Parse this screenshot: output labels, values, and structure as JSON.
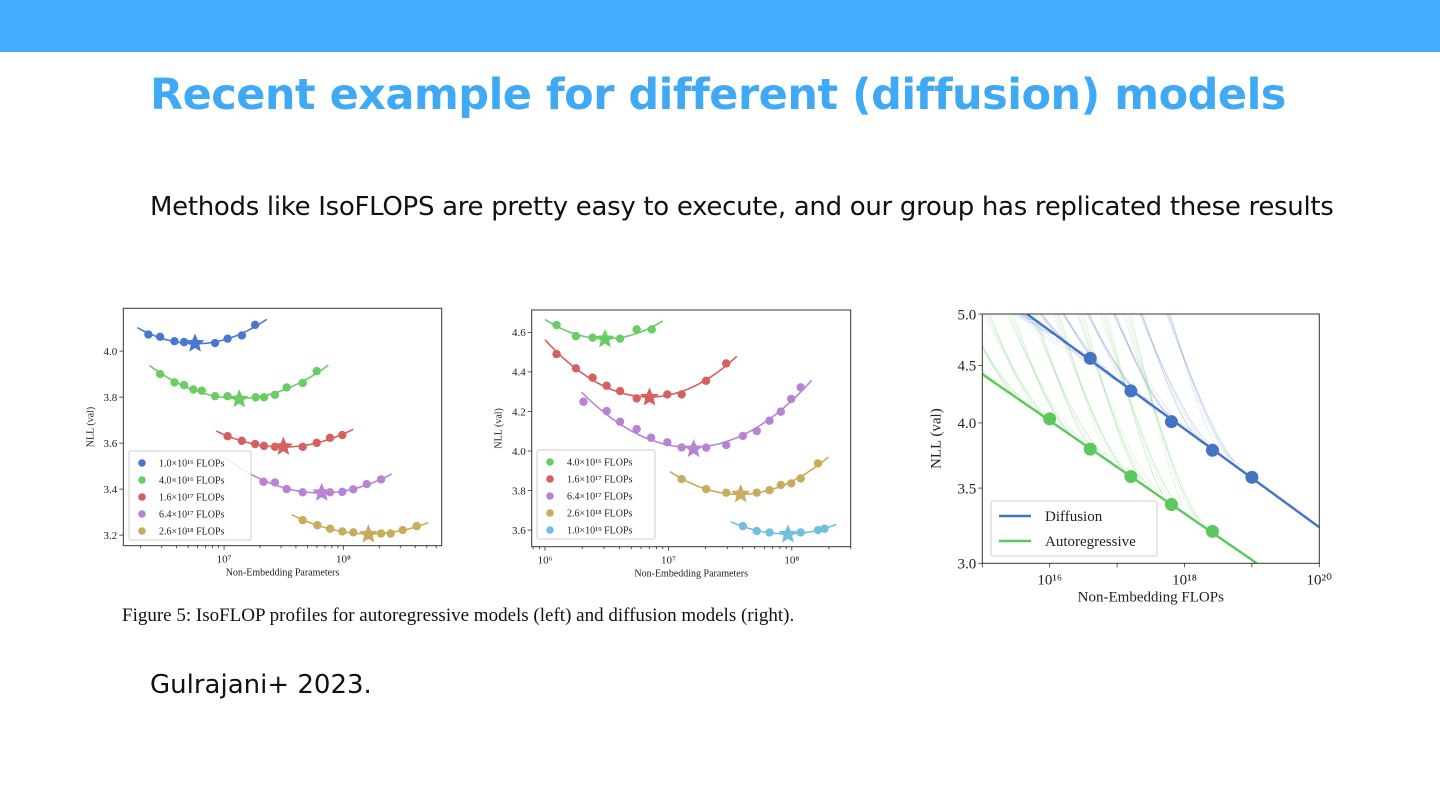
{
  "header": {
    "title": "Recent example for different (diffusion) models"
  },
  "body": {
    "text": "Methods like IsoFLOPS are pretty easy to execute, and our group has replicated these results"
  },
  "caption": "Figure 5: IsoFLOP profiles for autoregressive models (left) and diffusion models (right).",
  "citation": "Gulrajani+ 2023.",
  "colors": {
    "topbar": "#42adff",
    "title": "#3fa9f5"
  },
  "chart_data": [
    {
      "type": "scatter",
      "xlabel": "Non-Embedding Parameters",
      "ylabel": "NLL (val)",
      "xscale": "log",
      "xlim": [
        1430000.0,
        667000000.0
      ],
      "ylim": [
        3.154,
        4.186
      ],
      "xticks": [
        {
          "value": 10000000.0,
          "label": "10⁷"
        },
        {
          "value": 100000000.0,
          "label": "10⁸"
        }
      ],
      "yticks": [
        {
          "value": 3.2,
          "label": "3.2"
        },
        {
          "value": 3.4,
          "label": "3.4"
        },
        {
          "value": 3.6,
          "label": "3.6"
        },
        {
          "value": 3.8,
          "label": "3.8"
        },
        {
          "value": 4.0,
          "label": "4.0"
        }
      ],
      "legend": "bottom-left",
      "series": [
        {
          "name": "1.0×10¹⁶ FLOPs",
          "color": "#4878d0",
          "fit_range": [
            1880000.0,
            22800000.0
          ],
          "optimum": [
            5710000.0,
            4.033
          ],
          "points": [
            [
              2320000.0,
              4.072
            ],
            [
              2910000.0,
              4.062
            ],
            [
              3840000.0,
              4.043
            ],
            [
              4620000.0,
              4.039
            ],
            [
              8400000.0,
              4.035
            ],
            [
              10700000.0,
              4.054
            ],
            [
              14100000.0,
              4.068
            ],
            [
              18200000.0,
              4.114
            ]
          ]
        },
        {
          "name": "4.0×10¹⁶ FLOPs",
          "color": "#6acc64",
          "fit_range": [
            2370000.0,
            74800000.0
          ],
          "optimum": [
            13400000.0,
            3.791
          ],
          "points": [
            [
              2910000.0,
              3.9
            ],
            [
              3840000.0,
              3.864
            ],
            [
              4620000.0,
              3.852
            ],
            [
              5530000.0,
              3.833
            ],
            [
              6500000.0,
              3.828
            ],
            [
              8400000.0,
              3.804
            ],
            [
              10700000.0,
              3.804
            ],
            [
              18400000.0,
              3.799
            ],
            [
              21600000.0,
              3.799
            ],
            [
              26700000.0,
              3.81
            ],
            [
              33500000.0,
              3.842
            ],
            [
              45600000.0,
              3.861
            ],
            [
              59800000.0,
              3.913
            ]
          ]
        },
        {
          "name": "1.6×10¹⁷ FLOPs",
          "color": "#d65f5f",
          "fit_range": [
            8600000.0,
            121000000.0
          ],
          "optimum": [
            31400000.0,
            3.584
          ],
          "points": [
            [
              10700000.0,
              3.63
            ],
            [
              14100000.0,
              3.61
            ],
            [
              18200000.0,
              3.596
            ],
            [
              21600000.0,
              3.588
            ],
            [
              26700000.0,
              3.584
            ],
            [
              45600000.0,
              3.584
            ],
            [
              59800000.0,
              3.601
            ],
            [
              77300000.0,
              3.623
            ],
            [
              98000000.0,
              3.635
            ]
          ]
        },
        {
          "name": "6.4×10¹⁷ FLOPs",
          "color": "#b983d4",
          "fit_range": [
            10000000.0,
            254000000.0
          ],
          "optimum": [
            65800000.0,
            3.384
          ],
          "points": [
            [
              21400000.0,
              3.432
            ],
            [
              26700000.0,
              3.429
            ],
            [
              33500000.0,
              3.4
            ],
            [
              45600000.0,
              3.386
            ],
            [
              77300000.0,
              3.386
            ],
            [
              98000000.0,
              3.388
            ],
            [
              121000000.0,
              3.399
            ],
            [
              157000000.0,
              3.422
            ],
            [
              207000000.0,
              3.442
            ]
          ]
        },
        {
          "name": "2.6×10¹⁸ FLOPs",
          "color": "#c9ab5e",
          "fit_range": [
            36900000.0,
            515000000.0
          ],
          "optimum": [
            162000000.0,
            3.203
          ],
          "points": [
            [
              45600000.0,
              3.265
            ],
            [
              60500000.0,
              3.243
            ],
            [
              77300000.0,
              3.228
            ],
            [
              98000000.0,
              3.216
            ],
            [
              121000000.0,
              3.212
            ],
            [
              207000000.0,
              3.207
            ],
            [
              249000000.0,
              3.207
            ],
            [
              314000000.0,
              3.222
            ],
            [
              412000000.0,
              3.239
            ]
          ]
        }
      ]
    },
    {
      "type": "scatter",
      "xlabel": "Non-Embedding Parameters",
      "ylabel": "NLL (val)",
      "xscale": "log",
      "xlim": [
        780000.0,
        300000000.0
      ],
      "ylim": [
        3.516,
        4.713
      ],
      "xticks": [
        {
          "value": 1000000.0,
          "label": "10⁶"
        },
        {
          "value": 10000000.0,
          "label": "10⁷"
        },
        {
          "value": 100000000.0,
          "label": "10⁸"
        }
      ],
      "yticks": [
        {
          "value": 3.6,
          "label": "3.6"
        },
        {
          "value": 3.8,
          "label": "3.8"
        },
        {
          "value": 4.0,
          "label": "4.0"
        },
        {
          "value": 4.2,
          "label": "4.2"
        },
        {
          "value": 4.4,
          "label": "4.4"
        },
        {
          "value": 4.6,
          "label": "4.6"
        }
      ],
      "legend": "bottom-left",
      "series": [
        {
          "name": "4.0×10¹⁶ FLOPs",
          "color": "#6acc64",
          "fit_range": [
            1000000.0,
            9000000.0
          ],
          "optimum": [
            3060000.0,
            4.566
          ],
          "points": [
            [
              1240000.0,
              4.637
            ],
            [
              1780000.0,
              4.581
            ],
            [
              2430000.0,
              4.573
            ],
            [
              4060000.0,
              4.568
            ],
            [
              5530000.0,
              4.615
            ],
            [
              7330000.0,
              4.615
            ]
          ]
        },
        {
          "name": "1.6×10¹⁷ FLOPs",
          "color": "#d65f5f",
          "fit_range": [
            1000000.0,
            35800000.0
          ],
          "optimum": [
            7020000.0,
            4.271
          ],
          "points": [
            [
              1240000.0,
              4.49
            ],
            [
              1780000.0,
              4.418
            ],
            [
              2430000.0,
              4.371
            ],
            [
              3160000.0,
              4.33
            ],
            [
              4060000.0,
              4.303
            ],
            [
              5530000.0,
              4.266
            ],
            [
              9800000.0,
              4.286
            ],
            [
              12800000.0,
              4.286
            ],
            [
              20200000.0,
              4.355
            ],
            [
              29400000.0,
              4.443
            ]
          ]
        },
        {
          "name": "6.4×10¹⁷ FLOPs",
          "color": "#b983d4",
          "fit_range": [
            1980000.0,
            145000000.0
          ],
          "optimum": [
            16000000.0,
            4.01
          ],
          "points": [
            [
              2050000.0,
              4.249
            ],
            [
              3160000.0,
              4.202
            ],
            [
              4060000.0,
              4.148
            ],
            [
              5530000.0,
              4.111
            ],
            [
              7230000.0,
              4.067
            ],
            [
              9800000.0,
              4.044
            ],
            [
              12800000.0,
              4.018
            ],
            [
              20200000.0,
              4.017
            ],
            [
              29400000.0,
              4.03
            ],
            [
              40100000.0,
              4.076
            ],
            [
              52000000.0,
              4.101
            ],
            [
              65900000.0,
              4.153
            ],
            [
              81500000.0,
              4.199
            ],
            [
              98900000.0,
              4.263
            ],
            [
              118000000.0,
              4.322
            ]
          ]
        },
        {
          "name": "2.6×10¹⁸ FLOPs",
          "color": "#c9ab5e",
          "fit_range": [
            10300000.0,
            198000000.0
          ],
          "optimum": [
            38500000.0,
            3.782
          ],
          "points": [
            [
              12800000.0,
              3.858
            ],
            [
              20200000.0,
              3.807
            ],
            [
              29400000.0,
              3.789
            ],
            [
              52000000.0,
              3.789
            ],
            [
              65900000.0,
              3.802
            ],
            [
              81500000.0,
              3.828
            ],
            [
              98900000.0,
              3.836
            ],
            [
              118000000.0,
              3.861
            ],
            [
              163000000.0,
              3.937
            ]
          ]
        },
        {
          "name": "1.0×10¹⁹ FLOPs",
          "color": "#6fbfdd",
          "fit_range": [
            32000000.0,
            229000000.0
          ],
          "optimum": [
            92900000.0,
            3.578
          ],
          "points": [
            [
              40100000.0,
              3.62
            ],
            [
              52000000.0,
              3.595
            ],
            [
              65900000.0,
              3.588
            ],
            [
              118000000.0,
              3.588
            ],
            [
              163000000.0,
              3.6
            ],
            [
              184000000.0,
              3.607
            ]
          ]
        }
      ]
    },
    {
      "type": "line",
      "xlabel": "Non-Embedding FLOPs",
      "ylabel": "NLL (val)",
      "xscale": "log",
      "yscale": "log",
      "xlim": [
        1000000000000000.0,
        1e+20
      ],
      "ylim": [
        3.0,
        5.0
      ],
      "xticks": [
        {
          "value": 1e+16,
          "label": "10¹⁶"
        },
        {
          "value": 1e+18,
          "label": "10¹⁸"
        },
        {
          "value": 1e+20,
          "label": "10²⁰"
        }
      ],
      "yticks": [
        {
          "value": 3.0,
          "label": "3.0"
        },
        {
          "value": 3.5,
          "label": "3.5"
        },
        {
          "value": 4.0,
          "label": "4.0"
        },
        {
          "value": 4.5,
          "label": "4.5"
        },
        {
          "value": 5.0,
          "label": "5.0"
        }
      ],
      "legend": "bottom-left",
      "series": [
        {
          "name": "Diffusion",
          "color": "#4472c4",
          "fit": [
            [
              4600000000000000.0,
              5.0
            ],
            [
              1e+20,
              3.23
            ]
          ],
          "points": [
            [
              4e+16,
              4.566
            ],
            [
              1.6e+17,
              4.271
            ],
            [
              6.4e+17,
              4.01
            ],
            [
              2.6e+18,
              3.782
            ],
            [
              1e+19,
              3.578
            ]
          ]
        },
        {
          "name": "Autoregressive",
          "color": "#5cc85c",
          "fit": [
            [
              1000000000000000.0,
              4.42
            ],
            [
              1.18e+19,
              3.0
            ]
          ],
          "points": [
            [
              1e+16,
              4.033
            ],
            [
              4e+16,
              3.791
            ],
            [
              1.6e+17,
              3.584
            ],
            [
              6.4e+17,
              3.384
            ],
            [
              2.6e+18,
              3.203
            ]
          ]
        }
      ]
    }
  ]
}
